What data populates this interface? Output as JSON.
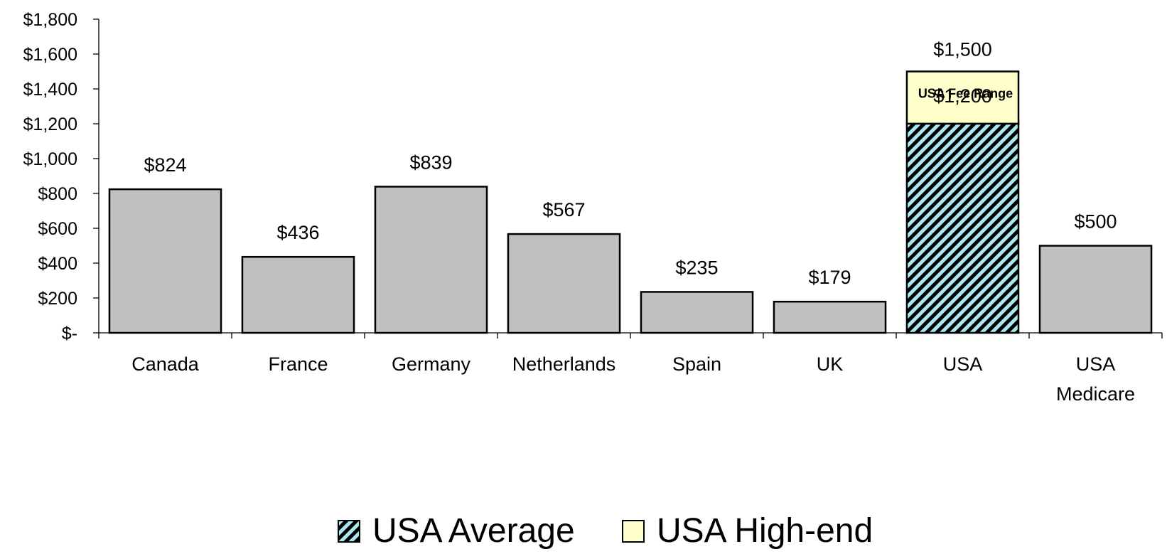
{
  "chart_data": {
    "type": "bar",
    "categories": [
      "Canada",
      "France",
      "Germany",
      "Netherlands",
      "Spain",
      "UK",
      "USA",
      "USA\nMedicare"
    ],
    "values": [
      824,
      436,
      839,
      567,
      235,
      179,
      1200,
      500
    ],
    "value_labels": [
      "$824",
      "$436",
      "$839",
      "$567",
      "$235",
      "$179",
      "$1,200",
      "$500"
    ],
    "usa_range": {
      "category": "USA",
      "average": 1200,
      "high_end": 1500,
      "average_label": "$1,200",
      "high_end_label": "$1,500",
      "annotation": "USA Fee Range"
    },
    "y_ticks": [
      0,
      200,
      400,
      600,
      800,
      1000,
      1200,
      1400,
      1600,
      1800
    ],
    "y_tick_labels": [
      "$-",
      "$200",
      "$400",
      "$600",
      "$800",
      "$1,000",
      "$1,200",
      "$1,400",
      "$1,600",
      "$1,800"
    ],
    "ylim": [
      0,
      1800
    ],
    "grid": false,
    "legend": {
      "placement": "bottom",
      "items": [
        {
          "label": "USA Average",
          "style": "hatched",
          "color": "#a8e8ef"
        },
        {
          "label": "USA High-end",
          "style": "solid",
          "color": "#ffffcc"
        }
      ]
    },
    "colors": {
      "default_bar": "#c0c0c0",
      "usa_average": "#a8e8ef",
      "usa_high_end": "#ffffcc",
      "outline": "#000000"
    }
  }
}
